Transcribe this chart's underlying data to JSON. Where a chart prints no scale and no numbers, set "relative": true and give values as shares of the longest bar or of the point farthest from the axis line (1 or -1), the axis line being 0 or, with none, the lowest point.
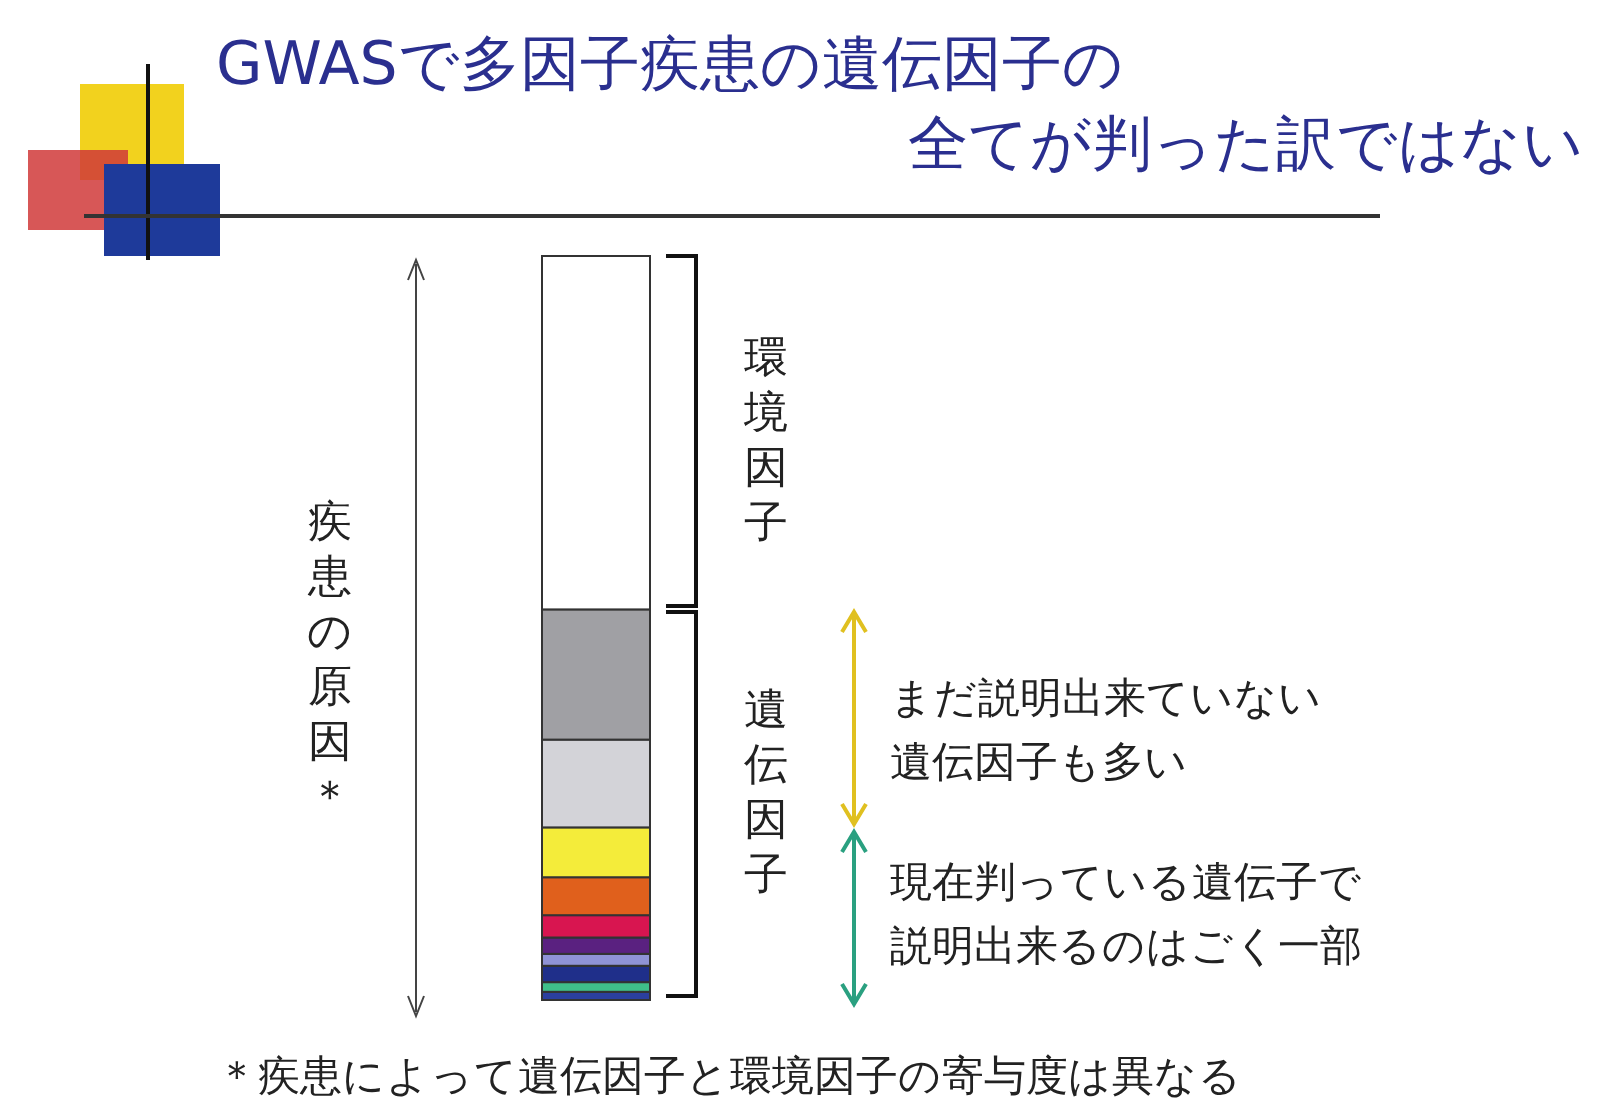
{
  "chart_data": {
    "type": "bar",
    "stacked": true,
    "relative": true,
    "title": "GWASで多因子疾患の遺伝因子の",
    "subtitle": "全てが判った訳ではない",
    "categories": [
      null
    ],
    "series": [
      {
        "color": "#2b3f9e",
        "values": [
          0.011
        ]
      },
      {
        "color": "#3fbf8a",
        "values": [
          0.013
        ]
      },
      {
        "color": "#1f2f8a",
        "values": [
          0.022
        ]
      },
      {
        "color": "#8f93d6",
        "values": [
          0.016
        ]
      },
      {
        "color": "#5a2180",
        "values": [
          0.022
        ]
      },
      {
        "color": "#d81550",
        "values": [
          0.03
        ]
      },
      {
        "color": "#e0601c",
        "values": [
          0.051
        ]
      },
      {
        "color": "#f4ec3a",
        "values": [
          0.067
        ]
      },
      {
        "color": "#d3d3d8",
        "values": [
          0.118
        ]
      },
      {
        "color": "#a0a0a4",
        "values": [
          0.175
        ]
      },
      {
        "color": "#ffffff",
        "values": [
          0.475
        ]
      }
    ],
    "annotations": [
      "環境因子",
      "遺伝因子",
      "疾患の原因＊",
      "まだ説明出来ていない",
      "遺伝因子も多い",
      "現在判っている遺伝子で",
      "説明出来るのはごく一部",
      "＊疾患によって遺伝因子と環境因子の寄与度は異なる"
    ]
  }
}
